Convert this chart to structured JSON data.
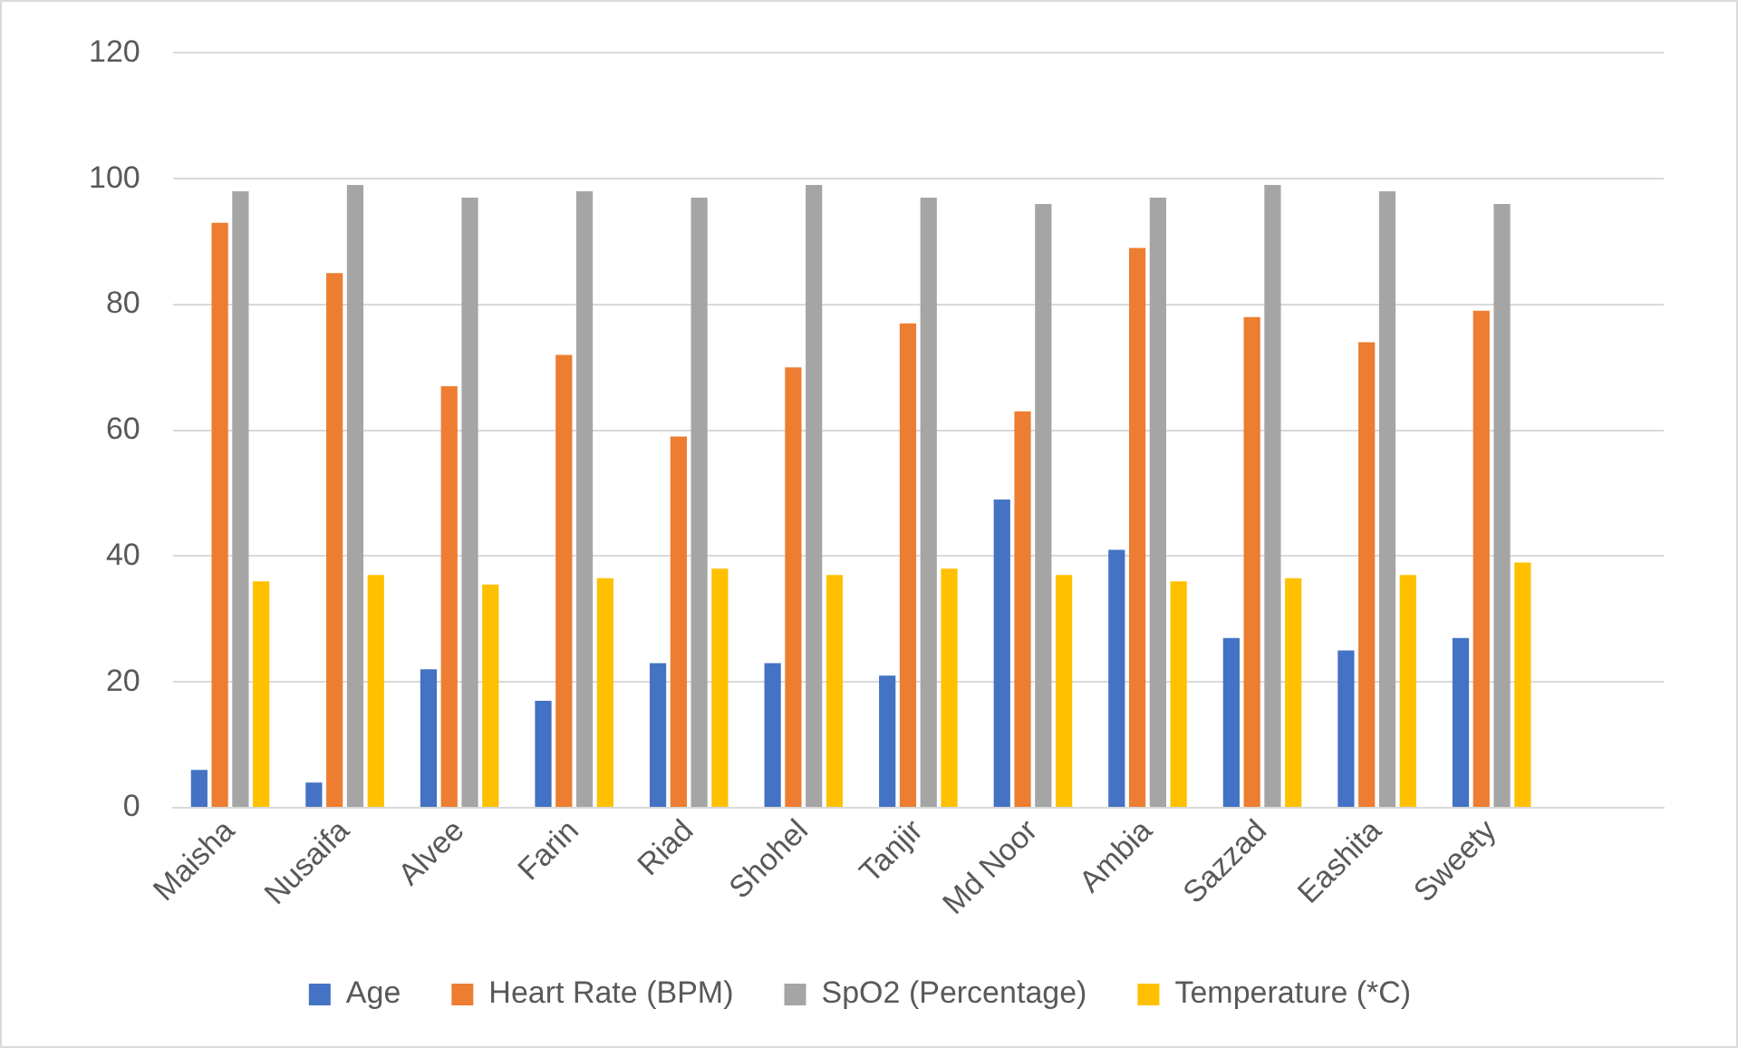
{
  "chart_data": {
    "type": "bar",
    "categories": [
      "Maisha",
      "Nusaifa",
      "Alvee",
      "Farin",
      "Riad",
      "Shohel",
      "Tanjir",
      "Md Noor",
      "Ambia",
      "Sazzad",
      "Eashita",
      "Sweety",
      null
    ],
    "series": [
      {
        "name": "Age",
        "color": "#4472c4",
        "values": [
          6,
          4,
          22,
          17,
          23,
          23,
          21,
          49,
          41,
          27,
          25,
          27,
          null
        ]
      },
      {
        "name": "Heart Rate (BPM)",
        "color": "#ed7d31",
        "values": [
          93,
          85,
          67,
          72,
          59,
          70,
          77,
          63,
          89,
          78,
          74,
          79,
          null
        ]
      },
      {
        "name": "SpO2 (Percentage)",
        "color": "#a5a5a5",
        "values": [
          98,
          99,
          97,
          98,
          97,
          99,
          97,
          96,
          97,
          99,
          98,
          96,
          null
        ]
      },
      {
        "name": "Temperature (*C)",
        "color": "#ffc000",
        "values": [
          36,
          37,
          35.5,
          36.5,
          38,
          37,
          38,
          37,
          36,
          36.5,
          37,
          39,
          null
        ]
      }
    ],
    "ylim": [
      0,
      120
    ],
    "yticks": [
      0,
      20,
      40,
      60,
      80,
      100,
      120
    ],
    "grid": "y",
    "legend": "bottom"
  }
}
